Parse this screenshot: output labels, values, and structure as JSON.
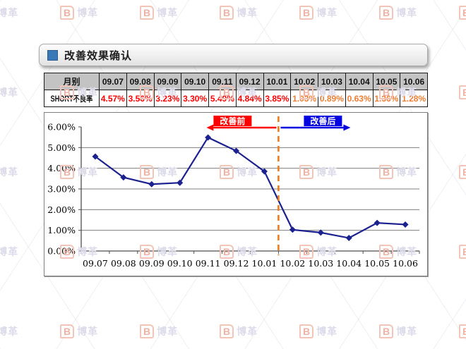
{
  "watermark": {
    "logo_char": "B",
    "brand": "博革",
    "icon_color": "#f0b2a4",
    "text_color": "#dcdbe9"
  },
  "header": {
    "title": "改善效果确认",
    "accent_color": "#3a79b8"
  },
  "table": {
    "corner_label": "月别",
    "row_label": "SHORT不良率",
    "months": [
      "09.07",
      "09.08",
      "09.09",
      "09.10",
      "09.11",
      "09.12",
      "10.01",
      "10.02",
      "10.03",
      "10.04",
      "10.05",
      "10.06"
    ],
    "values": [
      "4.57%",
      "3.56%",
      "3.23%",
      "3.30%",
      "5.49%",
      "4.84%",
      "3.85%",
      "1.03%",
      "0.89%",
      "0.63%",
      "1.36%",
      "1.28%"
    ],
    "before_count": 7,
    "before_color": "#ff0000",
    "after_color": "#ed7d31",
    "header_bg": "#c3c3c3"
  },
  "chart_data": {
    "type": "line",
    "title": "",
    "xlabel": "",
    "ylabel": "",
    "unit": "%",
    "categories": [
      "09.07",
      "09.08",
      "09.09",
      "09.10",
      "09.11",
      "09.12",
      "10.01",
      "10.02",
      "10.03",
      "10.04",
      "10.05",
      "10.06"
    ],
    "series": [
      {
        "name": "SHORT不良率",
        "values": [
          4.57,
          3.56,
          3.23,
          3.3,
          5.49,
          4.84,
          3.85,
          1.03,
          0.89,
          0.63,
          1.36,
          1.28
        ]
      }
    ],
    "ylim": [
      0,
      6
    ],
    "yticks": [
      {
        "value": 6,
        "label": "6.00%"
      },
      {
        "value": 5,
        "label": "5.00%"
      },
      {
        "value": 4,
        "label": "4.00%"
      },
      {
        "value": 3,
        "label": "3.00%"
      },
      {
        "value": 2,
        "label": "2.00%"
      },
      {
        "value": 1,
        "label": "1.00%"
      },
      {
        "value": 0,
        "label": "0.00%"
      }
    ],
    "grid": "horizontal",
    "legend": "none",
    "line_color": "#1c2190",
    "marker": "diamond",
    "divider": {
      "after_index": 6,
      "color": "#ef7c1a",
      "style": "dashed"
    },
    "annotations": [
      {
        "label": "改善前",
        "color": "#ff0000",
        "direction": "left"
      },
      {
        "label": "改善后",
        "color": "#0404e0",
        "direction": "right"
      }
    ]
  }
}
